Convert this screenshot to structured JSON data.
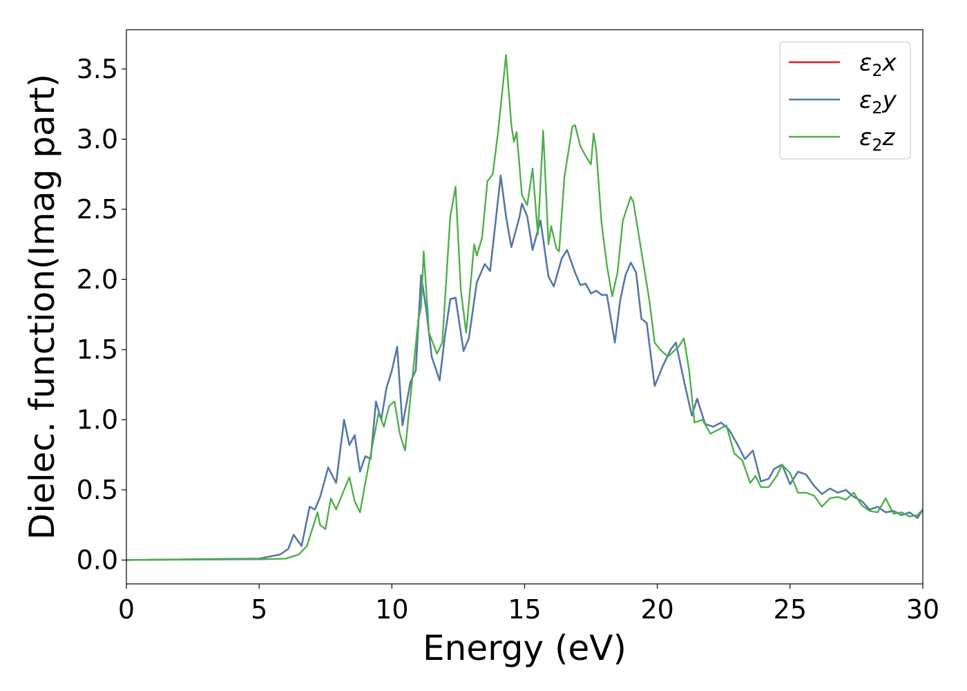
{
  "chart_data": {
    "type": "line",
    "title": "",
    "xlabel": "Energy (eV)",
    "ylabel": "Dielec. function(Imag part)",
    "xlim": [
      0,
      30
    ],
    "ylim": [
      -0.17,
      3.78
    ],
    "xticks": [
      0,
      5,
      10,
      15,
      20,
      25,
      30
    ],
    "xtick_labels": [
      "0",
      "5",
      "10",
      "15",
      "20",
      "25",
      "30"
    ],
    "yticks": [
      0.0,
      0.5,
      1.0,
      1.5,
      2.0,
      2.5,
      3.0,
      3.5
    ],
    "ytick_labels": [
      "0.0",
      "0.5",
      "1.0",
      "1.5",
      "2.0",
      "2.5",
      "3.0",
      "3.5"
    ],
    "grid": false,
    "legend": "top-right",
    "series": [
      {
        "name": "ε₂x",
        "legend_base": "ε",
        "legend_sub": "2",
        "legend_suffix": "x",
        "color": "#e41a1c",
        "x": [
          0,
          5,
          5.8,
          6.1,
          6.3,
          6.6,
          6.9,
          7.1,
          7.3,
          7.6,
          7.9,
          8.2,
          8.4,
          8.6,
          8.8,
          9.0,
          9.2,
          9.4,
          9.6,
          9.8,
          10.0,
          10.2,
          10.4,
          10.7,
          10.9,
          11.1,
          11.3,
          11.5,
          11.8,
          12.0,
          12.2,
          12.4,
          12.7,
          12.9,
          13.2,
          13.5,
          13.7,
          14.1,
          14.3,
          14.5,
          14.8,
          14.9,
          15.1,
          15.3,
          15.6,
          15.9,
          16.1,
          16.4,
          16.6,
          16.9,
          17.1,
          17.3,
          17.5,
          17.7,
          17.9,
          18.1,
          18.4,
          18.6,
          18.8,
          19.0,
          19.2,
          19.4,
          19.6,
          19.9,
          20.2,
          20.5,
          20.7,
          21.0,
          21.3,
          21.5,
          21.8,
          22.1,
          22.4,
          22.7,
          23.0,
          23.3,
          23.6,
          23.9,
          24.2,
          24.4,
          24.7,
          25.0,
          25.3,
          25.6,
          25.9,
          26.2,
          26.5,
          26.8,
          27.1,
          27.4,
          27.7,
          28.0,
          28.3,
          28.6,
          28.9,
          29.2,
          29.5,
          29.8,
          30.0
        ],
        "values": [
          0.0,
          0.01,
          0.04,
          0.08,
          0.18,
          0.1,
          0.38,
          0.36,
          0.45,
          0.66,
          0.55,
          1.0,
          0.82,
          0.89,
          0.63,
          0.74,
          0.72,
          1.13,
          1.0,
          1.23,
          1.35,
          1.52,
          0.96,
          1.27,
          1.35,
          2.03,
          1.78,
          1.45,
          1.28,
          1.6,
          1.86,
          1.87,
          1.49,
          1.58,
          1.98,
          2.11,
          2.06,
          2.74,
          2.45,
          2.23,
          2.44,
          2.54,
          2.45,
          2.21,
          2.42,
          2.02,
          1.95,
          2.15,
          2.21,
          2.05,
          1.96,
          1.97,
          1.9,
          1.92,
          1.89,
          1.89,
          1.55,
          1.85,
          2.03,
          2.12,
          2.05,
          1.72,
          1.69,
          1.24,
          1.38,
          1.5,
          1.55,
          1.28,
          1.03,
          1.15,
          0.97,
          0.95,
          0.98,
          0.93,
          0.83,
          0.72,
          0.78,
          0.56,
          0.58,
          0.65,
          0.68,
          0.54,
          0.63,
          0.61,
          0.53,
          0.47,
          0.51,
          0.48,
          0.5,
          0.45,
          0.42,
          0.36,
          0.38,
          0.34,
          0.35,
          0.32,
          0.34,
          0.3,
          0.36
        ]
      },
      {
        "name": "ε₂y",
        "legend_base": "ε",
        "legend_sub": "2",
        "legend_suffix": "y",
        "color": "#4a7bb0",
        "x": [
          0,
          5,
          5.8,
          6.1,
          6.3,
          6.6,
          6.9,
          7.1,
          7.3,
          7.6,
          7.9,
          8.2,
          8.4,
          8.6,
          8.8,
          9.0,
          9.2,
          9.4,
          9.6,
          9.8,
          10.0,
          10.2,
          10.4,
          10.7,
          10.9,
          11.1,
          11.3,
          11.5,
          11.8,
          12.0,
          12.2,
          12.4,
          12.7,
          12.9,
          13.2,
          13.5,
          13.7,
          14.1,
          14.3,
          14.5,
          14.8,
          14.9,
          15.1,
          15.3,
          15.6,
          15.9,
          16.1,
          16.4,
          16.6,
          16.9,
          17.1,
          17.3,
          17.5,
          17.7,
          17.9,
          18.1,
          18.4,
          18.6,
          18.8,
          19.0,
          19.2,
          19.4,
          19.6,
          19.9,
          20.2,
          20.5,
          20.7,
          21.0,
          21.3,
          21.5,
          21.8,
          22.1,
          22.4,
          22.7,
          23.0,
          23.3,
          23.6,
          23.9,
          24.2,
          24.4,
          24.7,
          25.0,
          25.3,
          25.6,
          25.9,
          26.2,
          26.5,
          26.8,
          27.1,
          27.4,
          27.7,
          28.0,
          28.3,
          28.6,
          28.9,
          29.2,
          29.5,
          29.8,
          30.0
        ],
        "values": [
          0.0,
          0.01,
          0.04,
          0.08,
          0.18,
          0.1,
          0.38,
          0.36,
          0.45,
          0.66,
          0.55,
          1.0,
          0.82,
          0.89,
          0.63,
          0.74,
          0.72,
          1.13,
          1.0,
          1.23,
          1.35,
          1.52,
          0.96,
          1.27,
          1.35,
          2.03,
          1.78,
          1.45,
          1.28,
          1.6,
          1.86,
          1.87,
          1.49,
          1.58,
          1.98,
          2.11,
          2.06,
          2.74,
          2.45,
          2.23,
          2.44,
          2.54,
          2.45,
          2.21,
          2.42,
          2.02,
          1.95,
          2.15,
          2.21,
          2.05,
          1.96,
          1.97,
          1.9,
          1.92,
          1.89,
          1.89,
          1.55,
          1.85,
          2.03,
          2.12,
          2.05,
          1.72,
          1.69,
          1.24,
          1.38,
          1.5,
          1.55,
          1.28,
          1.03,
          1.15,
          0.97,
          0.95,
          0.98,
          0.93,
          0.83,
          0.72,
          0.78,
          0.56,
          0.58,
          0.65,
          0.68,
          0.54,
          0.63,
          0.61,
          0.53,
          0.47,
          0.51,
          0.48,
          0.5,
          0.45,
          0.42,
          0.36,
          0.38,
          0.34,
          0.35,
          0.32,
          0.34,
          0.3,
          0.36
        ]
      },
      {
        "name": "ε₂z",
        "legend_base": "ε",
        "legend_sub": "2",
        "legend_suffix": "z",
        "color": "#4daf4a",
        "x": [
          0,
          5,
          6.0,
          6.5,
          6.8,
          7.0,
          7.2,
          7.3,
          7.5,
          7.7,
          7.9,
          8.2,
          8.4,
          8.6,
          8.8,
          9.0,
          9.2,
          9.5,
          9.7,
          9.9,
          10.1,
          10.3,
          10.5,
          10.8,
          11.0,
          11.1,
          11.2,
          11.4,
          11.7,
          11.9,
          12.2,
          12.4,
          12.6,
          12.8,
          13.1,
          13.2,
          13.4,
          13.6,
          13.8,
          14.0,
          14.3,
          14.5,
          14.6,
          14.7,
          14.9,
          15.1,
          15.3,
          15.5,
          15.7,
          15.9,
          16.0,
          16.2,
          16.3,
          16.5,
          16.8,
          16.9,
          17.1,
          17.3,
          17.5,
          17.6,
          17.7,
          17.9,
          18.1,
          18.3,
          18.5,
          18.7,
          19.0,
          19.1,
          19.4,
          19.7,
          19.9,
          20.1,
          20.4,
          20.8,
          21.0,
          21.2,
          21.4,
          21.7,
          22.0,
          22.3,
          22.6,
          22.9,
          23.2,
          23.5,
          23.7,
          23.9,
          24.2,
          24.5,
          24.7,
          25.0,
          25.3,
          25.6,
          25.9,
          26.2,
          26.5,
          26.8,
          27.1,
          27.4,
          27.7,
          28.0,
          28.3,
          28.6,
          28.9,
          29.2,
          29.5,
          29.8,
          30.0
        ],
        "values": [
          0.0,
          0.005,
          0.01,
          0.04,
          0.1,
          0.22,
          0.34,
          0.25,
          0.22,
          0.44,
          0.36,
          0.5,
          0.59,
          0.42,
          0.34,
          0.55,
          0.75,
          1.05,
          0.95,
          1.1,
          1.13,
          0.9,
          0.78,
          1.35,
          1.72,
          1.8,
          2.2,
          1.62,
          1.47,
          1.55,
          2.45,
          2.66,
          1.92,
          1.62,
          2.25,
          2.17,
          2.3,
          2.7,
          2.75,
          3.05,
          3.6,
          3.1,
          2.98,
          3.05,
          2.6,
          2.53,
          2.79,
          2.32,
          3.06,
          2.25,
          2.38,
          2.22,
          2.2,
          2.73,
          3.09,
          3.1,
          2.95,
          2.88,
          2.82,
          3.04,
          2.92,
          2.4,
          2.1,
          1.88,
          2.05,
          2.42,
          2.59,
          2.55,
          2.2,
          1.85,
          1.55,
          1.5,
          1.45,
          1.52,
          1.58,
          1.35,
          0.98,
          1.0,
          0.9,
          0.93,
          0.96,
          0.76,
          0.71,
          0.55,
          0.6,
          0.52,
          0.52,
          0.6,
          0.68,
          0.62,
          0.48,
          0.48,
          0.46,
          0.38,
          0.44,
          0.45,
          0.43,
          0.48,
          0.39,
          0.35,
          0.34,
          0.44,
          0.33,
          0.34,
          0.31,
          0.32,
          0.36
        ]
      }
    ]
  }
}
